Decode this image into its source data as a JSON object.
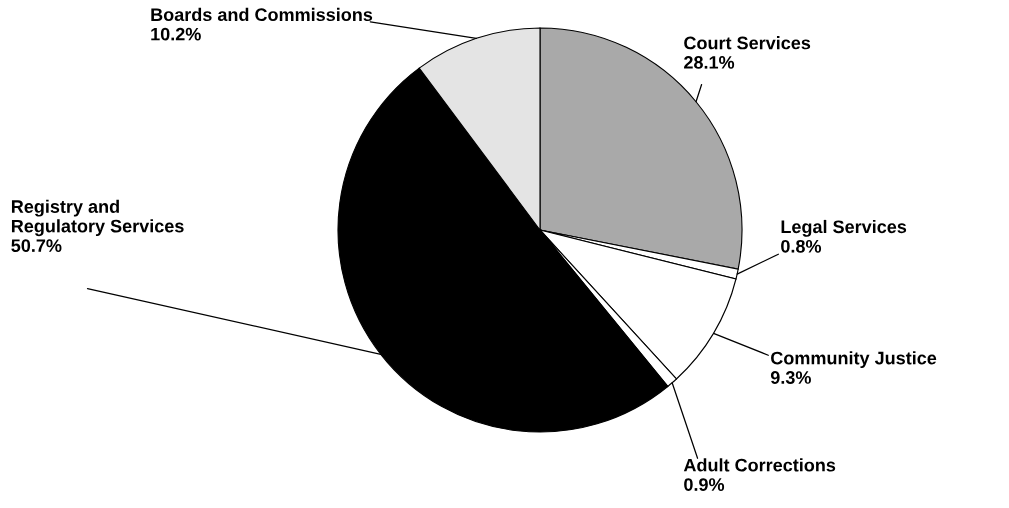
{
  "chart_data": {
    "type": "pie",
    "categories": [
      "Court Services",
      "Legal Services",
      "Community Justice",
      "Adult Corrections",
      "Registry and\nRegulatory Services",
      "Boards and Commissions"
    ],
    "values": [
      28.1,
      0.8,
      9.3,
      0.9,
      50.7,
      10.2
    ],
    "value_labels": [
      "28.1%",
      "0.8%",
      "9.3%",
      "0.9%",
      "50.7%",
      "10.2%"
    ],
    "colors": [
      "#a9a9a9",
      "#ffffff",
      "#ffffff",
      "#ffffff",
      "#000000",
      "#e4e4e4"
    ],
    "legend": false
  }
}
